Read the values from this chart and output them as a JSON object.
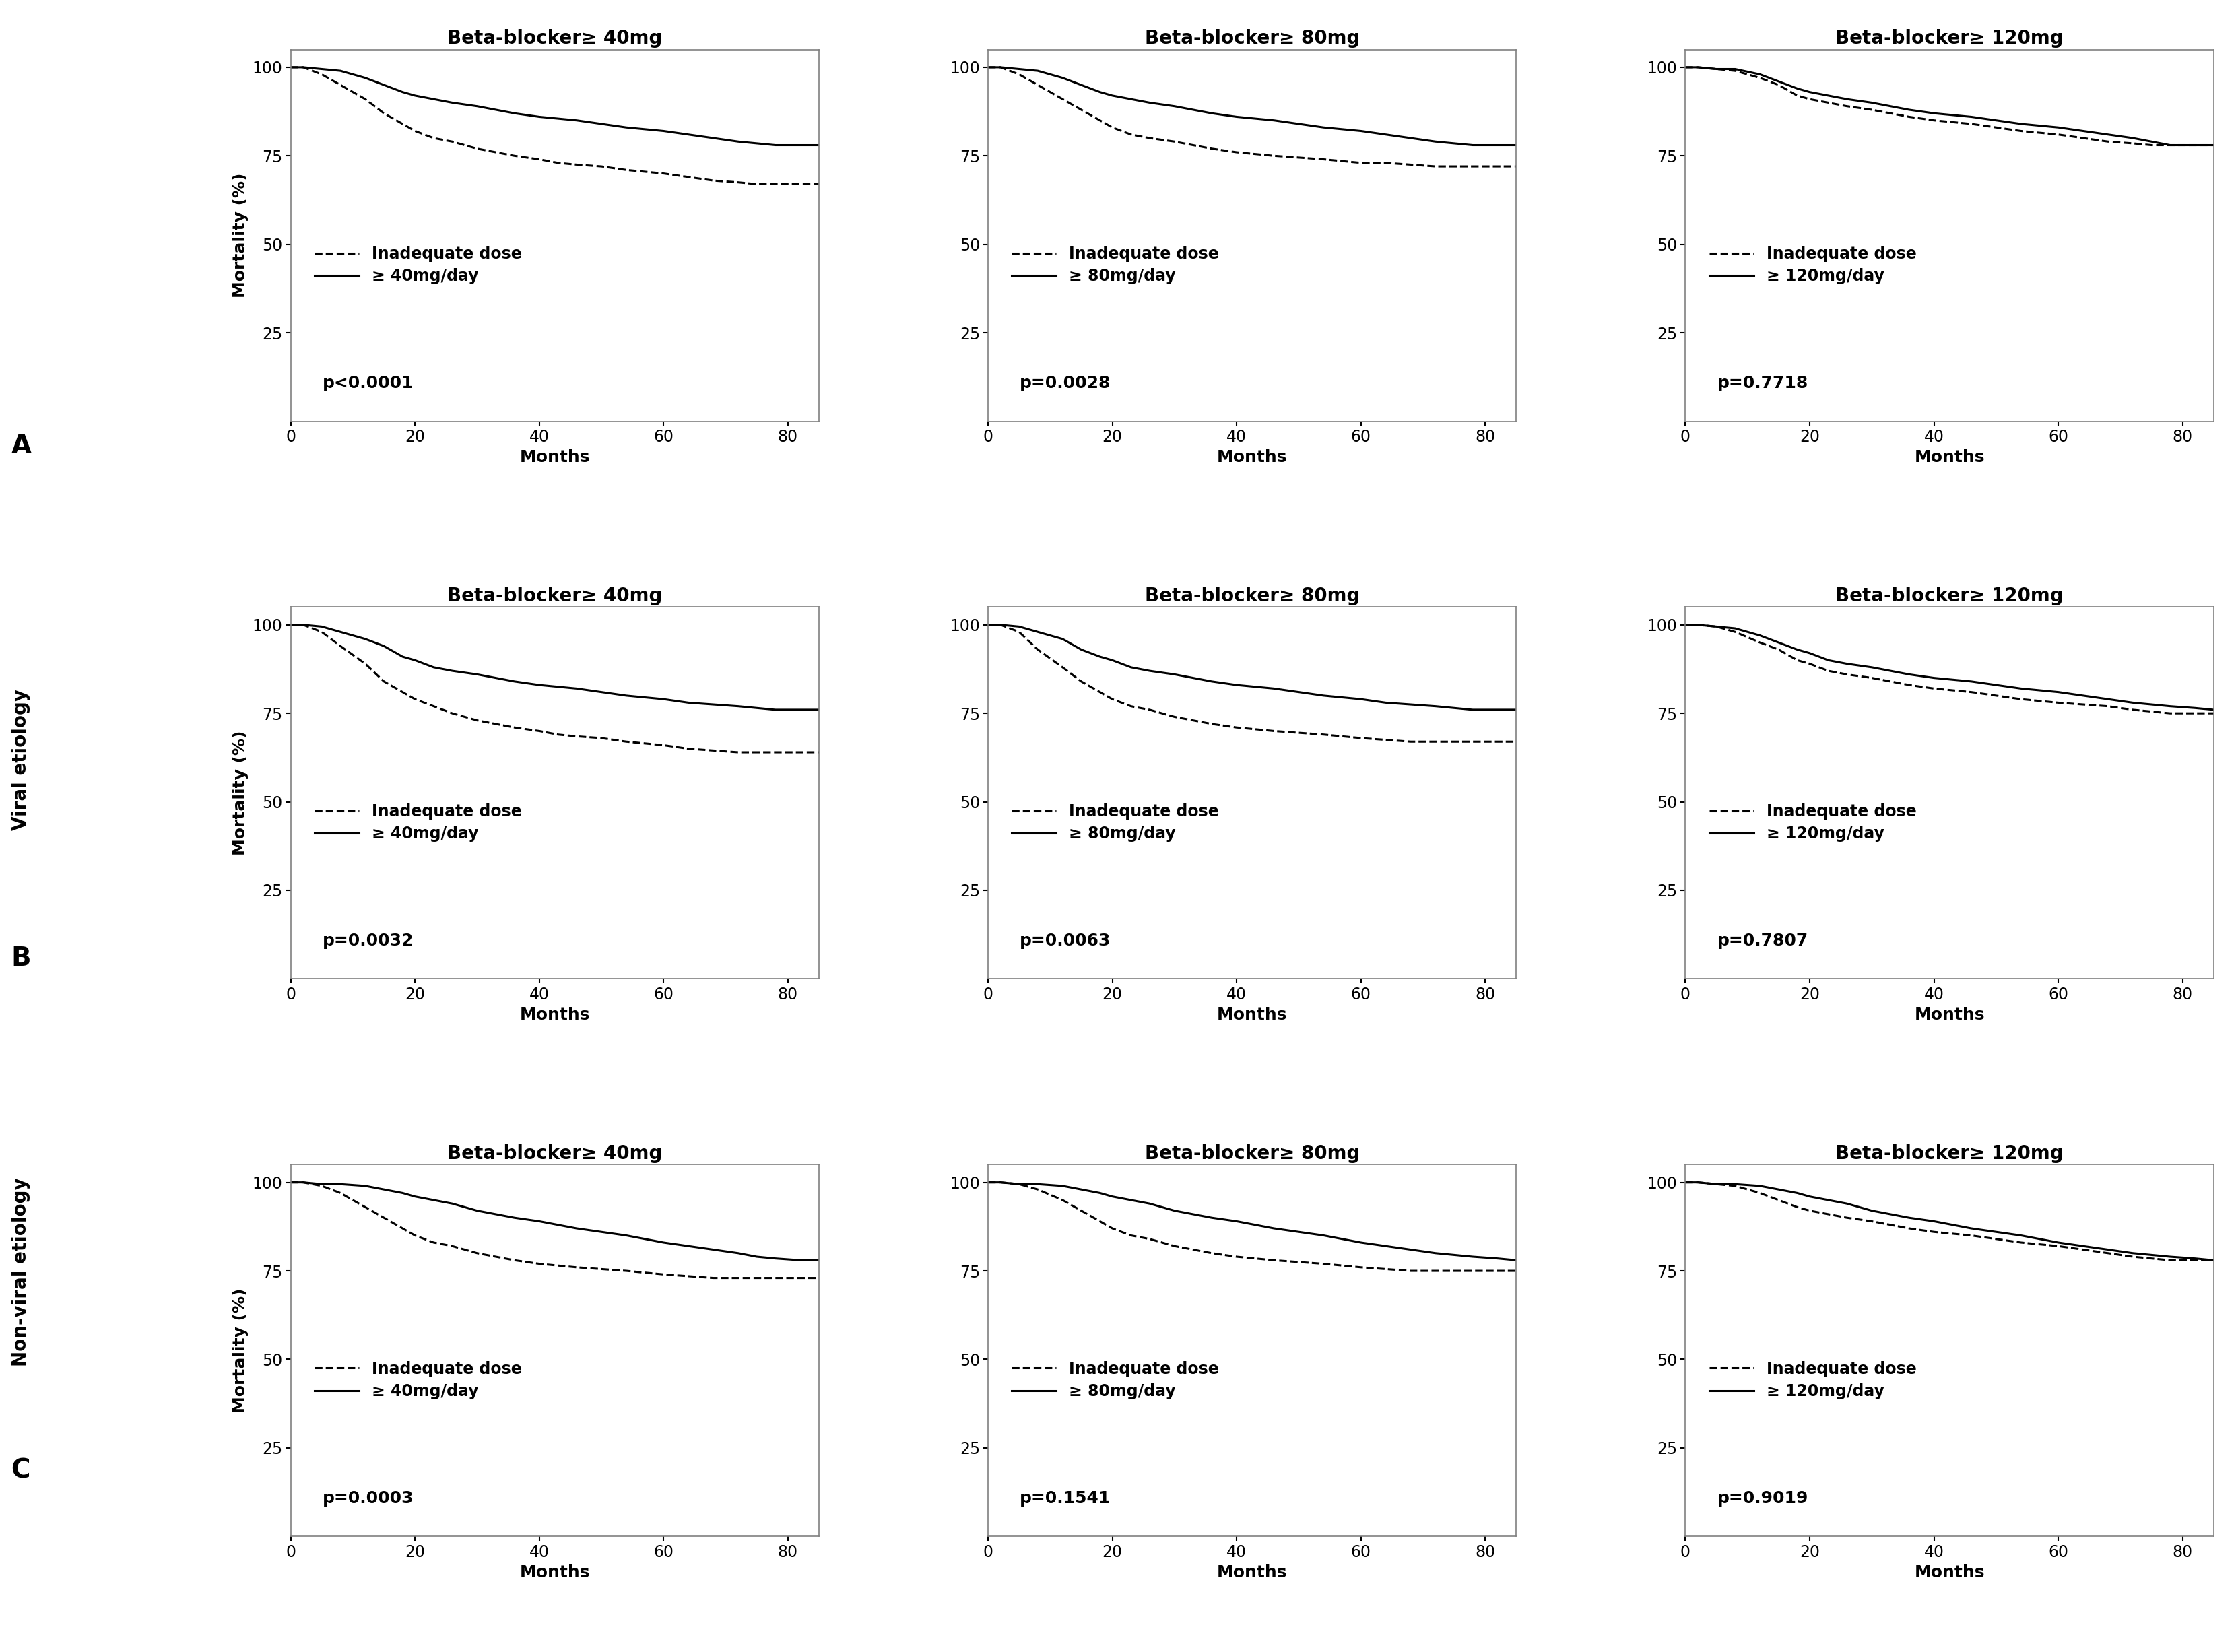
{
  "titles": [
    [
      "Beta-blocker≥ 40mg",
      "Beta-blocker≥ 80mg",
      "Beta-blocker≥ 120mg"
    ],
    [
      "Beta-blocker≥ 40mg",
      "Beta-blocker≥ 80mg",
      "Beta-blocker≥ 120mg"
    ],
    [
      "Beta-blocker≥ 40mg",
      "Beta-blocker≥ 80mg",
      "Beta-blocker≥ 120mg"
    ]
  ],
  "row_side_labels": [
    "A",
    "B",
    "C"
  ],
  "row_outer_labels": [
    "",
    "Viral etiology",
    "Non-viral etiology"
  ],
  "p_values": [
    [
      "p<0.0001",
      "p=0.0028",
      "p=0.7718"
    ],
    [
      "p=0.0032",
      "p=0.0063",
      "p=0.7807"
    ],
    [
      "p=0.0003",
      "p=0.1541",
      "p=0.9019"
    ]
  ],
  "legend_dose_labels": [
    [
      "≥ 40mg/day",
      "≥ 80mg/day",
      "≥ 120mg/day"
    ],
    [
      "≥ 40mg/day",
      "≥ 80mg/day",
      "≥ 120mg/day"
    ],
    [
      "≥ 40mg/day",
      "≥ 80mg/day",
      "≥ 120mg/day"
    ]
  ],
  "curves": {
    "A_40_adequate": {
      "x": [
        0,
        2,
        5,
        8,
        12,
        15,
        18,
        20,
        23,
        26,
        30,
        33,
        36,
        40,
        43,
        46,
        50,
        54,
        57,
        60,
        64,
        68,
        72,
        75,
        78,
        82,
        85
      ],
      "y": [
        100,
        100,
        99.5,
        99,
        97,
        95,
        93,
        92,
        91,
        90,
        89,
        88,
        87,
        86,
        85.5,
        85,
        84,
        83,
        82.5,
        82,
        81,
        80,
        79,
        78.5,
        78,
        78,
        78
      ]
    },
    "A_40_inadequate": {
      "x": [
        0,
        2,
        5,
        8,
        12,
        15,
        18,
        20,
        23,
        26,
        30,
        33,
        36,
        40,
        43,
        46,
        50,
        54,
        57,
        60,
        64,
        68,
        72,
        75,
        78,
        82,
        85
      ],
      "y": [
        100,
        100,
        98,
        95,
        91,
        87,
        84,
        82,
        80,
        79,
        77,
        76,
        75,
        74,
        73,
        72.5,
        72,
        71,
        70.5,
        70,
        69,
        68,
        67.5,
        67,
        67,
        67,
        67
      ]
    },
    "A_80_adequate": {
      "x": [
        0,
        2,
        5,
        8,
        12,
        15,
        18,
        20,
        23,
        26,
        30,
        33,
        36,
        40,
        43,
        46,
        50,
        54,
        57,
        60,
        64,
        68,
        72,
        75,
        78,
        82,
        85
      ],
      "y": [
        100,
        100,
        99.5,
        99,
        97,
        95,
        93,
        92,
        91,
        90,
        89,
        88,
        87,
        86,
        85.5,
        85,
        84,
        83,
        82.5,
        82,
        81,
        80,
        79,
        78.5,
        78,
        78,
        78
      ]
    },
    "A_80_inadequate": {
      "x": [
        0,
        2,
        5,
        8,
        12,
        15,
        18,
        20,
        23,
        26,
        30,
        33,
        36,
        40,
        43,
        46,
        50,
        54,
        57,
        60,
        64,
        68,
        72,
        75,
        78,
        82,
        85
      ],
      "y": [
        100,
        100,
        98,
        95,
        91,
        88,
        85,
        83,
        81,
        80,
        79,
        78,
        77,
        76,
        75.5,
        75,
        74.5,
        74,
        73.5,
        73,
        73,
        72.5,
        72,
        72,
        72,
        72,
        72
      ]
    },
    "A_120_adequate": {
      "x": [
        0,
        2,
        5,
        8,
        12,
        15,
        18,
        20,
        23,
        26,
        30,
        33,
        36,
        40,
        43,
        46,
        50,
        54,
        57,
        60,
        64,
        68,
        72,
        75,
        78,
        82,
        85
      ],
      "y": [
        100,
        100,
        99.5,
        99.5,
        98,
        96,
        94,
        93,
        92,
        91,
        90,
        89,
        88,
        87,
        86.5,
        86,
        85,
        84,
        83.5,
        83,
        82,
        81,
        80,
        79,
        78,
        78,
        78
      ]
    },
    "A_120_inadequate": {
      "x": [
        0,
        2,
        5,
        8,
        12,
        15,
        18,
        20,
        23,
        26,
        30,
        33,
        36,
        40,
        43,
        46,
        50,
        54,
        57,
        60,
        64,
        68,
        72,
        75,
        78,
        82,
        85
      ],
      "y": [
        100,
        100,
        99.5,
        99,
        97,
        95,
        92,
        91,
        90,
        89,
        88,
        87,
        86,
        85,
        84.5,
        84,
        83,
        82,
        81.5,
        81,
        80,
        79,
        78.5,
        78,
        78,
        78,
        78
      ]
    },
    "B_40_adequate": {
      "x": [
        0,
        2,
        5,
        8,
        12,
        15,
        18,
        20,
        23,
        26,
        30,
        33,
        36,
        40,
        43,
        46,
        50,
        54,
        57,
        60,
        64,
        68,
        72,
        75,
        78,
        82,
        85
      ],
      "y": [
        100,
        100,
        99.5,
        98,
        96,
        94,
        91,
        90,
        88,
        87,
        86,
        85,
        84,
        83,
        82.5,
        82,
        81,
        80,
        79.5,
        79,
        78,
        77.5,
        77,
        76.5,
        76,
        76,
        76
      ]
    },
    "B_40_inadequate": {
      "x": [
        0,
        2,
        5,
        8,
        12,
        15,
        18,
        20,
        23,
        26,
        30,
        33,
        36,
        40,
        43,
        46,
        50,
        54,
        57,
        60,
        64,
        68,
        72,
        75,
        78,
        82,
        85
      ],
      "y": [
        100,
        100,
        98,
        94,
        89,
        84,
        81,
        79,
        77,
        75,
        73,
        72,
        71,
        70,
        69,
        68.5,
        68,
        67,
        66.5,
        66,
        65,
        64.5,
        64,
        64,
        64,
        64,
        64
      ]
    },
    "B_80_adequate": {
      "x": [
        0,
        2,
        5,
        8,
        12,
        15,
        18,
        20,
        23,
        26,
        30,
        33,
        36,
        40,
        43,
        46,
        50,
        54,
        57,
        60,
        64,
        68,
        72,
        75,
        78,
        82,
        85
      ],
      "y": [
        100,
        100,
        99.5,
        98,
        96,
        93,
        91,
        90,
        88,
        87,
        86,
        85,
        84,
        83,
        82.5,
        82,
        81,
        80,
        79.5,
        79,
        78,
        77.5,
        77,
        76.5,
        76,
        76,
        76
      ]
    },
    "B_80_inadequate": {
      "x": [
        0,
        2,
        5,
        8,
        12,
        15,
        18,
        20,
        23,
        26,
        30,
        33,
        36,
        40,
        43,
        46,
        50,
        54,
        57,
        60,
        64,
        68,
        72,
        75,
        78,
        82,
        85
      ],
      "y": [
        100,
        100,
        98,
        93,
        88,
        84,
        81,
        79,
        77,
        76,
        74,
        73,
        72,
        71,
        70.5,
        70,
        69.5,
        69,
        68.5,
        68,
        67.5,
        67,
        67,
        67,
        67,
        67,
        67
      ]
    },
    "B_120_adequate": {
      "x": [
        0,
        2,
        5,
        8,
        12,
        15,
        18,
        20,
        23,
        26,
        30,
        33,
        36,
        40,
        43,
        46,
        50,
        54,
        57,
        60,
        64,
        68,
        72,
        75,
        78,
        82,
        85
      ],
      "y": [
        100,
        100,
        99.5,
        99,
        97,
        95,
        93,
        92,
        90,
        89,
        88,
        87,
        86,
        85,
        84.5,
        84,
        83,
        82,
        81.5,
        81,
        80,
        79,
        78,
        77.5,
        77,
        76.5,
        76
      ]
    },
    "B_120_inadequate": {
      "x": [
        0,
        2,
        5,
        8,
        12,
        15,
        18,
        20,
        23,
        26,
        30,
        33,
        36,
        40,
        43,
        46,
        50,
        54,
        57,
        60,
        64,
        68,
        72,
        75,
        78,
        82,
        85
      ],
      "y": [
        100,
        100,
        99.5,
        98,
        95,
        93,
        90,
        89,
        87,
        86,
        85,
        84,
        83,
        82,
        81.5,
        81,
        80,
        79,
        78.5,
        78,
        77.5,
        77,
        76,
        75.5,
        75,
        75,
        75
      ]
    },
    "C_40_adequate": {
      "x": [
        0,
        2,
        5,
        8,
        12,
        15,
        18,
        20,
        23,
        26,
        30,
        33,
        36,
        40,
        43,
        46,
        50,
        54,
        57,
        60,
        64,
        68,
        72,
        75,
        78,
        82,
        85
      ],
      "y": [
        100,
        100,
        99.5,
        99.5,
        99,
        98,
        97,
        96,
        95,
        94,
        92,
        91,
        90,
        89,
        88,
        87,
        86,
        85,
        84,
        83,
        82,
        81,
        80,
        79,
        78.5,
        78,
        78
      ]
    },
    "C_40_inadequate": {
      "x": [
        0,
        2,
        5,
        8,
        12,
        15,
        18,
        20,
        23,
        26,
        30,
        33,
        36,
        40,
        43,
        46,
        50,
        54,
        57,
        60,
        64,
        68,
        72,
        75,
        78,
        82,
        85
      ],
      "y": [
        100,
        100,
        99,
        97,
        93,
        90,
        87,
        85,
        83,
        82,
        80,
        79,
        78,
        77,
        76.5,
        76,
        75.5,
        75,
        74.5,
        74,
        73.5,
        73,
        73,
        73,
        73,
        73,
        73
      ]
    },
    "C_80_adequate": {
      "x": [
        0,
        2,
        5,
        8,
        12,
        15,
        18,
        20,
        23,
        26,
        30,
        33,
        36,
        40,
        43,
        46,
        50,
        54,
        57,
        60,
        64,
        68,
        72,
        75,
        78,
        82,
        85
      ],
      "y": [
        100,
        100,
        99.5,
        99.5,
        99,
        98,
        97,
        96,
        95,
        94,
        92,
        91,
        90,
        89,
        88,
        87,
        86,
        85,
        84,
        83,
        82,
        81,
        80,
        79.5,
        79,
        78.5,
        78
      ]
    },
    "C_80_inadequate": {
      "x": [
        0,
        2,
        5,
        8,
        12,
        15,
        18,
        20,
        23,
        26,
        30,
        33,
        36,
        40,
        43,
        46,
        50,
        54,
        57,
        60,
        64,
        68,
        72,
        75,
        78,
        82,
        85
      ],
      "y": [
        100,
        100,
        99.5,
        98,
        95,
        92,
        89,
        87,
        85,
        84,
        82,
        81,
        80,
        79,
        78.5,
        78,
        77.5,
        77,
        76.5,
        76,
        75.5,
        75,
        75,
        75,
        75,
        75,
        75
      ]
    },
    "C_120_adequate": {
      "x": [
        0,
        2,
        5,
        8,
        12,
        15,
        18,
        20,
        23,
        26,
        30,
        33,
        36,
        40,
        43,
        46,
        50,
        54,
        57,
        60,
        64,
        68,
        72,
        75,
        78,
        82,
        85
      ],
      "y": [
        100,
        100,
        99.5,
        99.5,
        99,
        98,
        97,
        96,
        95,
        94,
        92,
        91,
        90,
        89,
        88,
        87,
        86,
        85,
        84,
        83,
        82,
        81,
        80,
        79.5,
        79,
        78.5,
        78
      ]
    },
    "C_120_inadequate": {
      "x": [
        0,
        2,
        5,
        8,
        12,
        15,
        18,
        20,
        23,
        26,
        30,
        33,
        36,
        40,
        43,
        46,
        50,
        54,
        57,
        60,
        64,
        68,
        72,
        75,
        78,
        82,
        85
      ],
      "y": [
        100,
        100,
        99.5,
        99,
        97,
        95,
        93,
        92,
        91,
        90,
        89,
        88,
        87,
        86,
        85.5,
        85,
        84,
        83,
        82.5,
        82,
        81,
        80,
        79,
        78.5,
        78,
        78,
        78
      ]
    }
  },
  "xlim": [
    0,
    85
  ],
  "ylim": [
    0,
    105
  ],
  "xticks": [
    0,
    20,
    40,
    60,
    80
  ],
  "yticks": [
    25,
    50,
    75,
    100
  ],
  "xlabel": "Months",
  "ylabel": "Mortality (%)",
  "background_color": "#ffffff",
  "line_color": "#000000",
  "linewidth": 2.2,
  "fontsize_title": 20,
  "fontsize_axislabel": 18,
  "fontsize_tick": 17,
  "fontsize_legend": 17,
  "fontsize_pvalue": 18,
  "fontsize_rowlabel_big": 28,
  "fontsize_outer_label": 20
}
